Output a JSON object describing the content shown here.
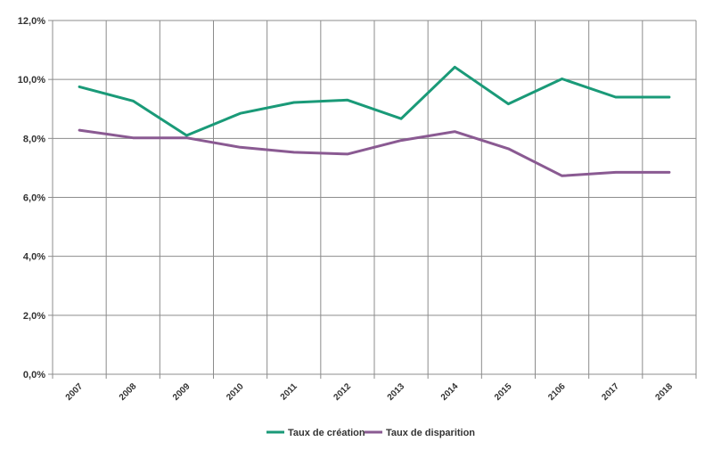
{
  "chart_data": {
    "type": "line",
    "categories": [
      "2007",
      "2008",
      "2009",
      "2010",
      "2011",
      "2012",
      "2013",
      "2014",
      "2015",
      "2106",
      "2017",
      "2018"
    ],
    "ylim": [
      0,
      12
    ],
    "yticks": [
      0,
      2,
      4,
      6,
      8,
      10,
      12
    ],
    "ytick_labels": [
      "0,0%",
      "2,0%",
      "4,0%",
      "6,0%",
      "8,0%",
      "10,0%",
      "12,0%"
    ],
    "grid": true,
    "legend_position": "bottom",
    "series": [
      {
        "name": "Taux de création",
        "color": "#1a9a78",
        "values": [
          9.75,
          9.27,
          8.1,
          8.85,
          9.22,
          9.3,
          8.67,
          10.42,
          9.17,
          10.02,
          9.4,
          9.4
        ]
      },
      {
        "name": "Taux de disparition",
        "color": "#8a5a92",
        "values": [
          8.28,
          8.02,
          8.02,
          7.7,
          7.53,
          7.47,
          7.93,
          8.23,
          7.65,
          6.73,
          6.85,
          6.85
        ]
      }
    ]
  }
}
